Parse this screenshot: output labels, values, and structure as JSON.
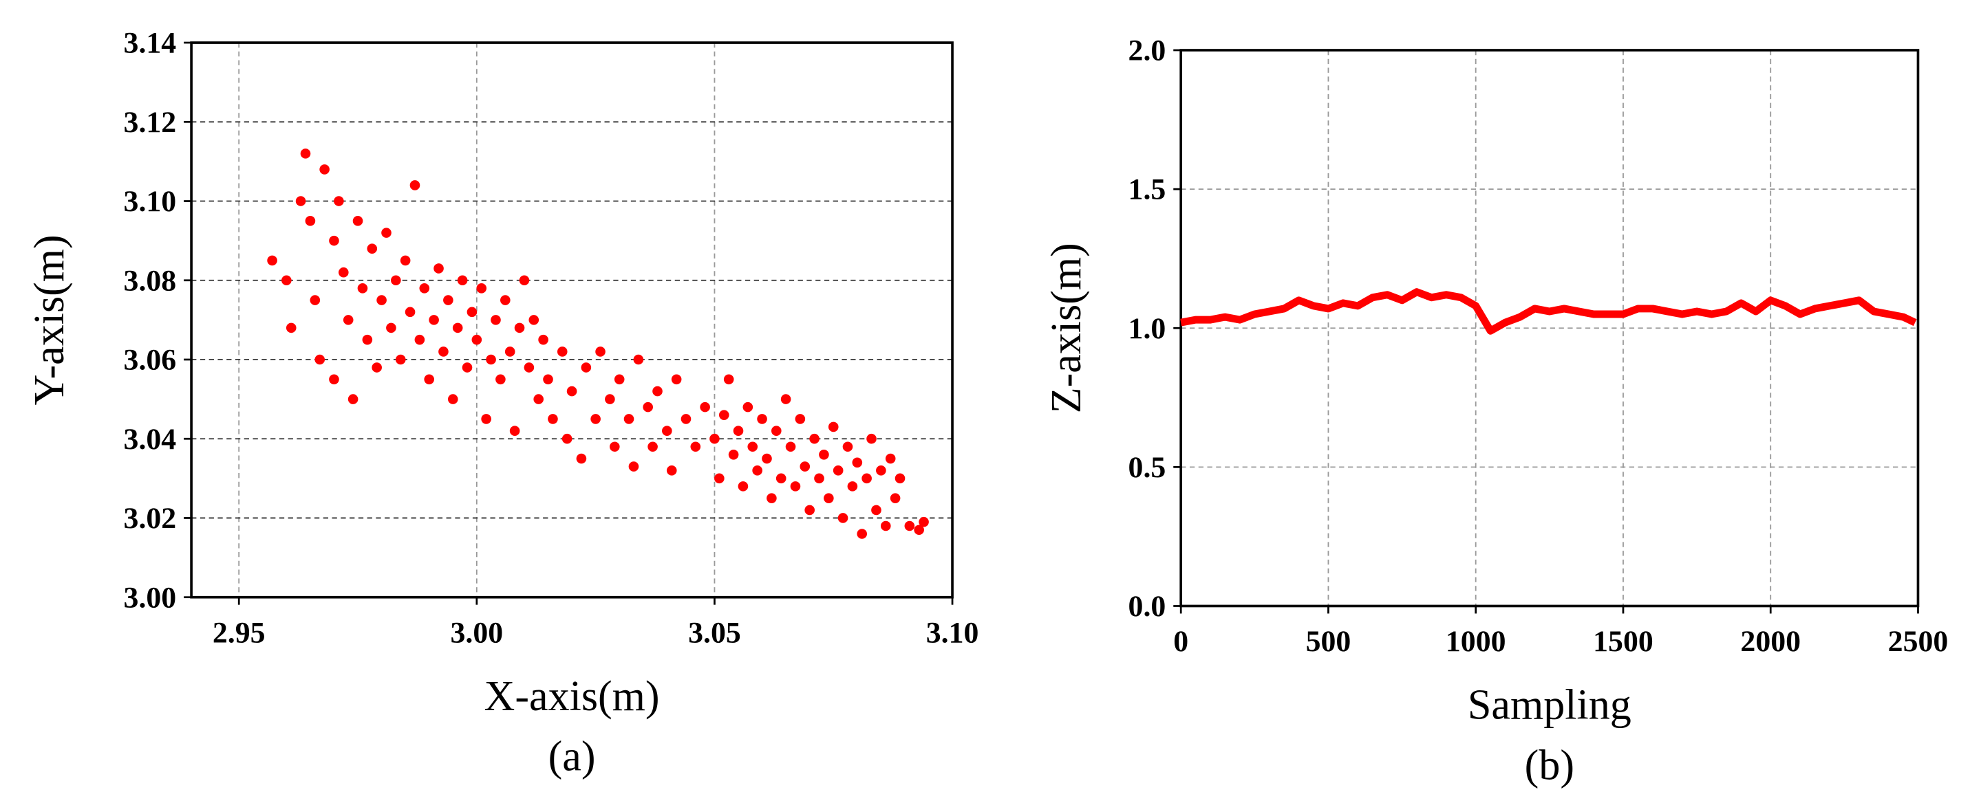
{
  "chart_data": [
    {
      "type": "scatter",
      "caption": "(a)",
      "xlabel": "X-axis(m)",
      "ylabel": "Y-axis(m)",
      "color": "#ff0000",
      "grid": true,
      "xlim": [
        2.94,
        3.1
      ],
      "ylim": [
        3.0,
        3.14
      ],
      "xticks": [
        2.95,
        {
          "value": 3.0,
          "label": "3.00"
        },
        3.05,
        {
          "value": 3.1,
          "label": "3.10"
        }
      ],
      "yticks": [
        {
          "value": 3.0,
          "label": "3.00"
        },
        3.02,
        3.04,
        3.06,
        3.08,
        {
          "value": 3.1,
          "label": "3.10"
        },
        3.12,
        3.14
      ],
      "x": [
        2.957,
        2.96,
        2.961,
        2.963,
        2.964,
        2.965,
        2.966,
        2.967,
        2.968,
        2.97,
        2.97,
        2.971,
        2.972,
        2.973,
        2.974,
        2.975,
        2.976,
        2.977,
        2.978,
        2.979,
        2.98,
        2.981,
        2.982,
        2.983,
        2.984,
        2.985,
        2.986,
        2.987,
        2.988,
        2.989,
        2.99,
        2.991,
        2.992,
        2.993,
        2.994,
        2.995,
        2.996,
        2.997,
        2.998,
        2.999,
        3.0,
        3.001,
        3.002,
        3.003,
        3.004,
        3.005,
        3.006,
        3.007,
        3.008,
        3.009,
        3.01,
        3.011,
        3.012,
        3.013,
        3.014,
        3.015,
        3.016,
        3.018,
        3.019,
        3.02,
        3.022,
        3.023,
        3.025,
        3.026,
        3.028,
        3.029,
        3.03,
        3.032,
        3.033,
        3.034,
        3.036,
        3.037,
        3.038,
        3.04,
        3.041,
        3.042,
        3.044,
        3.046,
        3.048,
        3.05,
        3.051,
        3.052,
        3.053,
        3.054,
        3.055,
        3.056,
        3.057,
        3.058,
        3.059,
        3.06,
        3.061,
        3.062,
        3.063,
        3.064,
        3.065,
        3.066,
        3.067,
        3.068,
        3.069,
        3.07,
        3.071,
        3.072,
        3.073,
        3.074,
        3.075,
        3.076,
        3.077,
        3.078,
        3.079,
        3.08,
        3.081,
        3.082,
        3.083,
        3.084,
        3.085,
        3.086,
        3.087,
        3.088,
        3.089,
        3.091,
        3.093,
        3.094
      ],
      "values": [
        3.085,
        3.08,
        3.068,
        3.1,
        3.112,
        3.095,
        3.075,
        3.06,
        3.108,
        3.09,
        3.055,
        3.1,
        3.082,
        3.07,
        3.05,
        3.095,
        3.078,
        3.065,
        3.088,
        3.058,
        3.075,
        3.092,
        3.068,
        3.08,
        3.06,
        3.085,
        3.072,
        3.104,
        3.065,
        3.078,
        3.055,
        3.07,
        3.083,
        3.062,
        3.075,
        3.05,
        3.068,
        3.08,
        3.058,
        3.072,
        3.065,
        3.078,
        3.045,
        3.06,
        3.07,
        3.055,
        3.075,
        3.062,
        3.042,
        3.068,
        3.08,
        3.058,
        3.07,
        3.05,
        3.065,
        3.055,
        3.045,
        3.062,
        3.04,
        3.052,
        3.035,
        3.058,
        3.045,
        3.062,
        3.05,
        3.038,
        3.055,
        3.045,
        3.033,
        3.06,
        3.048,
        3.038,
        3.052,
        3.042,
        3.032,
        3.055,
        3.045,
        3.038,
        3.048,
        3.04,
        3.03,
        3.046,
        3.055,
        3.036,
        3.042,
        3.028,
        3.048,
        3.038,
        3.032,
        3.045,
        3.035,
        3.025,
        3.042,
        3.03,
        3.05,
        3.038,
        3.028,
        3.045,
        3.033,
        3.022,
        3.04,
        3.03,
        3.036,
        3.025,
        3.043,
        3.032,
        3.02,
        3.038,
        3.028,
        3.034,
        3.016,
        3.03,
        3.04,
        3.022,
        3.032,
        3.018,
        3.035,
        3.025,
        3.03,
        3.018,
        3.017,
        3.019
      ]
    },
    {
      "type": "line",
      "caption": "(b)",
      "xlabel": "Sampling",
      "ylabel": "Z-axis(m)",
      "color": "#ff0000",
      "grid": true,
      "xlim": [
        0,
        2500
      ],
      "ylim": [
        0,
        2
      ],
      "xticks": [
        0,
        500,
        1000,
        1500,
        2000,
        2500
      ],
      "yticks": [
        {
          "value": 0,
          "label": "0.0"
        },
        0.5,
        {
          "value": 1,
          "label": "1.0"
        },
        1.5,
        {
          "value": 2,
          "label": "2.0"
        }
      ],
      "x": [
        0,
        50,
        100,
        150,
        200,
        250,
        300,
        350,
        400,
        450,
        500,
        550,
        600,
        650,
        700,
        750,
        800,
        850,
        900,
        950,
        1000,
        1050,
        1100,
        1150,
        1200,
        1250,
        1300,
        1350,
        1400,
        1450,
        1500,
        1550,
        1600,
        1650,
        1700,
        1750,
        1800,
        1850,
        1900,
        1950,
        2000,
        2050,
        2100,
        2150,
        2200,
        2250,
        2300,
        2350,
        2400,
        2450,
        2490
      ],
      "values": [
        1.02,
        1.03,
        1.03,
        1.04,
        1.03,
        1.05,
        1.06,
        1.07,
        1.1,
        1.08,
        1.07,
        1.09,
        1.08,
        1.11,
        1.12,
        1.1,
        1.13,
        1.11,
        1.12,
        1.11,
        1.08,
        0.99,
        1.02,
        1.04,
        1.07,
        1.06,
        1.07,
        1.06,
        1.05,
        1.05,
        1.05,
        1.07,
        1.07,
        1.06,
        1.05,
        1.06,
        1.05,
        1.06,
        1.09,
        1.06,
        1.1,
        1.08,
        1.05,
        1.07,
        1.08,
        1.09,
        1.1,
        1.06,
        1.05,
        1.04,
        1.02
      ]
    }
  ]
}
